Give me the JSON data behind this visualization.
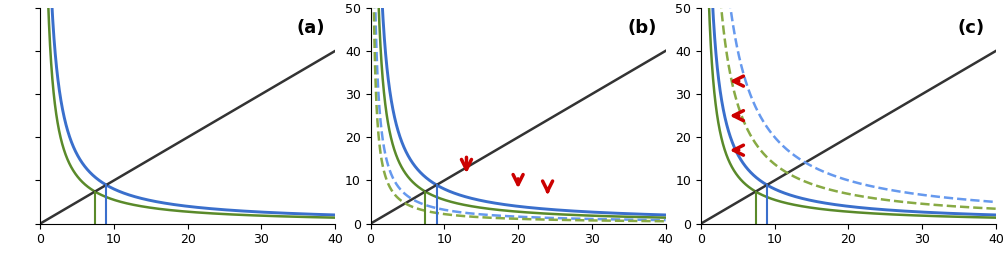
{
  "panels": [
    "(a)",
    "(b)",
    "(c)"
  ],
  "xlim": [
    0,
    40
  ],
  "ylim_bc": [
    0,
    50
  ],
  "xticks": [
    0,
    10,
    20,
    30,
    40
  ],
  "yticks_bc": [
    0,
    10,
    20,
    30,
    40,
    50
  ],
  "blue_color": "#3a6fcc",
  "green_color": "#5a8a2a",
  "black_color": "#333333",
  "red_color": "#cc0000",
  "dashed_blue_color": "#6699ee",
  "dashed_green_color": "#88aa44",
  "line_width": 1.8,
  "panel_label_fontsize": 13,
  "blue_A": 80,
  "green_A": 55,
  "black_slope": 1.0,
  "scale_b": 0.4,
  "scale_c": 0.4,
  "b_arrows": [
    [
      13,
      16,
      13,
      11
    ],
    [
      20,
      11,
      20,
      7.5
    ],
    [
      24,
      8.5,
      24,
      6
    ]
  ],
  "c_arrows": [
    [
      5.5,
      33,
      3.5,
      33
    ],
    [
      5.5,
      25,
      3.5,
      25
    ],
    [
      5.5,
      17,
      3.5,
      17
    ]
  ]
}
